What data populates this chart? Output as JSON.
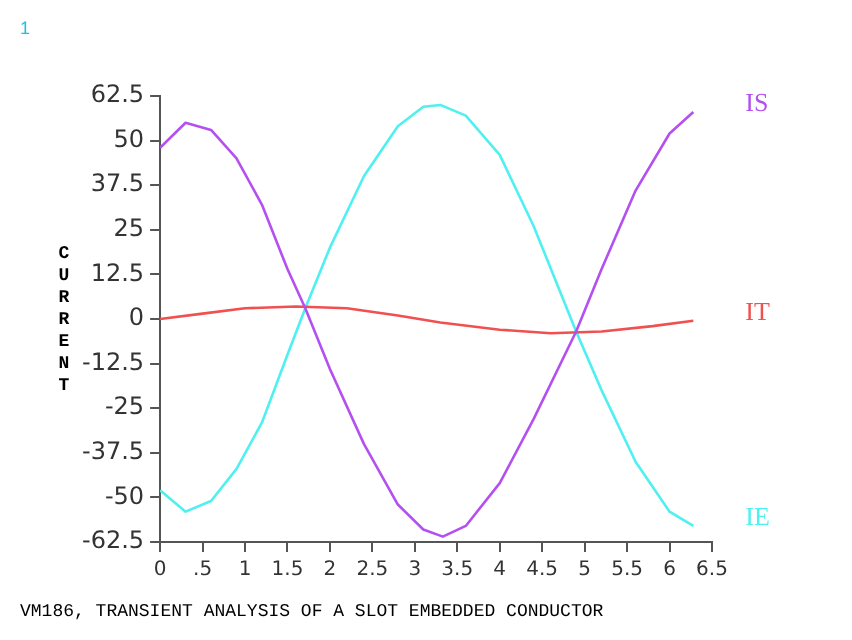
{
  "chart_data": {
    "type": "line",
    "ylabel": "CURRENT",
    "annotations": [
      "1",
      "VM186, TRANSIENT ANALYSIS OF A SLOT EMBEDDED CONDUCTOR"
    ],
    "xlim": [
      0,
      6.5
    ],
    "xticks": [
      0,
      {
        "value": 0.5,
        "label": ".5"
      },
      1,
      1.5,
      2,
      2.5,
      3,
      3.5,
      4,
      4.5,
      5,
      5.5,
      6,
      6.5
    ],
    "ylim": [
      -62.5,
      62.5
    ],
    "yticks": [
      -62.5,
      -50,
      -37.5,
      -25,
      -12.5,
      0,
      12.5,
      25,
      37.5,
      50,
      62.5
    ],
    "grid": false,
    "legend": false,
    "marker": "none",
    "line_style": "solid",
    "series": [
      {
        "name": "IS",
        "color": "#b450f0",
        "x": [
          0,
          0.3,
          0.6,
          0.9,
          1.2,
          1.5,
          1.71,
          2,
          2.4,
          2.8,
          3.1,
          3.33,
          3.6,
          4,
          4.4,
          4.9,
          5.2,
          5.6,
          6,
          6.28
        ],
        "values": [
          48,
          55,
          53,
          45,
          32,
          14,
          3,
          -14,
          -35,
          -52,
          -59,
          -61,
          -58,
          -46,
          -28,
          -3.5,
          14,
          36,
          52,
          58
        ]
      },
      {
        "name": "IT",
        "color": "#f05050",
        "x": [
          0,
          0.5,
          1,
          1.6,
          2.2,
          2.8,
          3.3,
          4,
          4.6,
          5.2,
          5.8,
          6.28
        ],
        "values": [
          0,
          1.5,
          3,
          3.5,
          3,
          1,
          -1,
          -3,
          -4,
          -3.5,
          -2,
          -0.5
        ]
      },
      {
        "name": "IE",
        "color": "#50f0f0",
        "x": [
          0,
          0.3,
          0.6,
          0.9,
          1.2,
          1.5,
          1.71,
          2,
          2.4,
          2.8,
          3.1,
          3.3,
          3.6,
          4,
          4.4,
          4.9,
          5.2,
          5.6,
          6,
          6.28
        ],
        "values": [
          -48,
          -54,
          -51,
          -42,
          -29,
          -10,
          3,
          20,
          40,
          54,
          59.5,
          60,
          57,
          46,
          26,
          -3.5,
          -20,
          -40,
          -54,
          -58
        ]
      }
    ]
  }
}
